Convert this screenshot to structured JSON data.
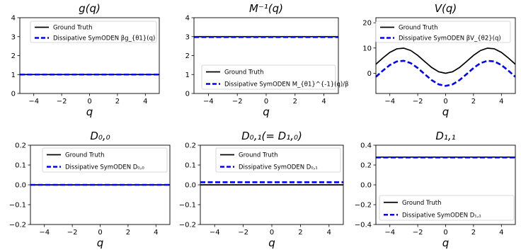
{
  "chart_data": [
    {
      "type": "line",
      "title": "g(q)",
      "xlabel": "q",
      "ylabel": "",
      "xlim": [
        -5,
        5
      ],
      "ylim": [
        0,
        4
      ],
      "xticks": [
        -4,
        -2,
        0,
        2,
        4
      ],
      "xtick_labels": [
        "−4",
        "−2",
        "0",
        "2",
        "4"
      ],
      "yticks": [
        0,
        1,
        2,
        3,
        4
      ],
      "ytick_labels": [
        "0",
        "1",
        "2",
        "3",
        "4"
      ],
      "legend_position": "top-left",
      "series": [
        {
          "name": "Ground Truth",
          "color": "#000000",
          "style": "solid",
          "x": [
            -5,
            5
          ],
          "y": [
            1,
            1
          ]
        },
        {
          "name": "Dissipative SymODEN βg_{θ1}(q)",
          "color": "#0000ff",
          "style": "dashed",
          "x": [
            -5,
            5
          ],
          "y": [
            1,
            1
          ]
        }
      ]
    },
    {
      "type": "line",
      "title": "M⁻¹(q)",
      "xlabel": "q",
      "ylabel": "",
      "xlim": [
        -5,
        5
      ],
      "ylim": [
        0,
        4
      ],
      "xticks": [
        -4,
        -2,
        0,
        2,
        4
      ],
      "xtick_labels": [
        "−4",
        "−2",
        "0",
        "2",
        "4"
      ],
      "yticks": [
        0,
        1,
        2,
        3,
        4
      ],
      "ytick_labels": [
        "0",
        "1",
        "2",
        "3",
        "4"
      ],
      "legend_position": "bottom",
      "series": [
        {
          "name": "Ground Truth",
          "color": "#000000",
          "style": "solid",
          "x": [
            -5,
            5
          ],
          "y": [
            3,
            3
          ]
        },
        {
          "name": "Dissipative SymODEN M_{θ1}^{-1}(q)/β",
          "color": "#0000ff",
          "style": "dashed",
          "x": [
            -5,
            5
          ],
          "y": [
            2.98,
            2.98
          ]
        }
      ]
    },
    {
      "type": "line",
      "title": "V(q)",
      "xlabel": "q",
      "ylabel": "",
      "xlim": [
        -5,
        5
      ],
      "ylim": [
        -8,
        22
      ],
      "xticks": [
        -4,
        -2,
        0,
        2,
        4
      ],
      "xtick_labels": [
        "−4",
        "−2",
        "0",
        "2",
        "4"
      ],
      "yticks": [
        0,
        10,
        20
      ],
      "ytick_labels": [
        "0",
        "10",
        "20"
      ],
      "legend_position": "top",
      "series": [
        {
          "name": "Ground Truth",
          "color": "#000000",
          "style": "solid",
          "x": [
            -5,
            -4.5,
            -4,
            -3.5,
            -3,
            -2.5,
            -2,
            -1.5,
            -1,
            -0.5,
            0,
            0.5,
            1,
            1.5,
            2,
            2.5,
            3,
            3.5,
            4,
            4.5,
            5
          ],
          "y": [
            3.58,
            6.06,
            8.27,
            9.68,
            9.95,
            9.01,
            7.08,
            4.65,
            2.3,
            0.61,
            0,
            0.61,
            2.3,
            4.65,
            7.08,
            9.01,
            9.95,
            9.68,
            8.27,
            6.06,
            3.58
          ]
        },
        {
          "name": "Dissipative SymODEN βV_{θ2}(q)",
          "color": "#0000ff",
          "style": "dashed",
          "x": [
            -5,
            -4.5,
            -4,
            -3.5,
            -3,
            -2.5,
            -2,
            -1.5,
            -1,
            -0.5,
            0,
            0.5,
            1,
            1.5,
            2,
            2.5,
            3,
            3.5,
            4,
            4.5,
            5
          ],
          "y": [
            -1.42,
            1.06,
            3.27,
            4.68,
            4.95,
            4.01,
            2.08,
            -0.35,
            -2.7,
            -4.39,
            -5,
            -4.39,
            -2.7,
            -0.35,
            2.08,
            4.01,
            4.95,
            4.68,
            3.27,
            1.06,
            -1.42
          ]
        }
      ]
    },
    {
      "type": "line",
      "title": "D₀,₀",
      "xlabel": "q",
      "ylabel": "",
      "xlim": [
        -5,
        5
      ],
      "ylim": [
        -0.2,
        0.2
      ],
      "xticks": [
        -4,
        -2,
        0,
        2,
        4
      ],
      "xtick_labels": [
        "−4",
        "−2",
        "0",
        "2",
        "4"
      ],
      "yticks": [
        -0.2,
        -0.1,
        0,
        0.1,
        0.2
      ],
      "ytick_labels": [
        "−0.2",
        "−0.1",
        "0.0",
        "0.1",
        "0.2"
      ],
      "legend_position": "top",
      "series": [
        {
          "name": "Ground Truth",
          "color": "#000000",
          "style": "solid",
          "x": [
            -5,
            5
          ],
          "y": [
            0,
            0
          ]
        },
        {
          "name": "Dissipative SymODEN D₀,₀",
          "color": "#0000ff",
          "style": "dashed",
          "x": [
            -5,
            5
          ],
          "y": [
            0,
            0
          ]
        }
      ]
    },
    {
      "type": "line",
      "title": "D₀,₁(= D₁,₀)",
      "xlabel": "q",
      "ylabel": "",
      "xlim": [
        -5,
        5
      ],
      "ylim": [
        -0.2,
        0.2
      ],
      "xticks": [
        -4,
        -2,
        0,
        2,
        4
      ],
      "xtick_labels": [
        "−4",
        "−2",
        "0",
        "2",
        "4"
      ],
      "yticks": [
        -0.2,
        -0.1,
        0,
        0.1,
        0.2
      ],
      "ytick_labels": [
        "−0.2",
        "−0.1",
        "0.0",
        "0.1",
        "0.2"
      ],
      "legend_position": "top",
      "series": [
        {
          "name": "Ground Truth",
          "color": "#000000",
          "style": "solid",
          "x": [
            -5,
            5
          ],
          "y": [
            0,
            0
          ]
        },
        {
          "name": "Dissipative SymODEN D₀,₁",
          "color": "#0000ff",
          "style": "dashed",
          "x": [
            -5,
            5
          ],
          "y": [
            0.013,
            0.013
          ]
        }
      ]
    },
    {
      "type": "line",
      "title": "D₁,₁",
      "xlabel": "q",
      "ylabel": "",
      "xlim": [
        -5,
        5
      ],
      "ylim": [
        -0.4,
        0.4
      ],
      "xticks": [
        -4,
        -2,
        0,
        2,
        4
      ],
      "xtick_labels": [
        "−4",
        "−2",
        "0",
        "2",
        "4"
      ],
      "yticks": [
        -0.4,
        -0.2,
        0,
        0.2,
        0.4
      ],
      "ytick_labels": [
        "−0.4",
        "−0.2",
        "0.0",
        "0.2",
        "0.4"
      ],
      "legend_position": "bottom",
      "series": [
        {
          "name": "Ground Truth",
          "color": "#000000",
          "style": "solid",
          "x": [
            -5,
            5
          ],
          "y": [
            0.28,
            0.28
          ]
        },
        {
          "name": "Dissipative SymODEN D₁,₁",
          "color": "#0000ff",
          "style": "dashed",
          "x": [
            -5,
            5
          ],
          "y": [
            0.276,
            0.276
          ]
        }
      ]
    }
  ]
}
